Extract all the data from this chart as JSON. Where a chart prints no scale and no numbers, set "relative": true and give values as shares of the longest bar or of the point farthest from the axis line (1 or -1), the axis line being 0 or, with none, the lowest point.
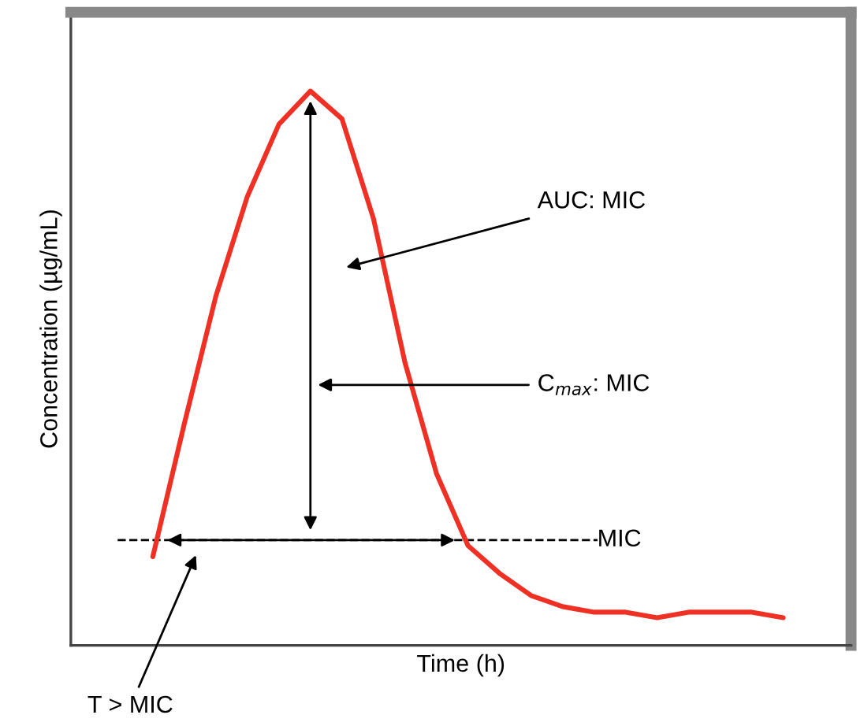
{
  "chart_data": {
    "type": "line",
    "relative": true,
    "xlabel": "Time (h)",
    "ylabel": "Concentration (µg/mL)",
    "categories": [
      null,
      null,
      null,
      null,
      null,
      null,
      null,
      null,
      null,
      null,
      null,
      null,
      null,
      null,
      null,
      null,
      null,
      null,
      null,
      null,
      null
    ],
    "series": [
      {
        "color": "#ee3124",
        "values": [
          0.16,
          0.4,
          0.63,
          0.81,
          0.94,
          1,
          0.95,
          0.77,
          0.51,
          0.31,
          0.18,
          0.13,
          0.09,
          0.07,
          0.06,
          0.06,
          0.05,
          0.06,
          0.06,
          0.06,
          0.05
        ]
      }
    ],
    "ref_lines": [
      {
        "axis": "y",
        "value": 0.19,
        "label": "MIC",
        "color": "#000000",
        "line_style": "dashed"
      }
    ],
    "annotations": [
      "AUC: MIC",
      "C$_{max}$: MIC",
      "T > MIC"
    ],
    "grid": false,
    "legend": false,
    "tick_labels": false,
    "marker": "none",
    "line_style": "solid"
  }
}
